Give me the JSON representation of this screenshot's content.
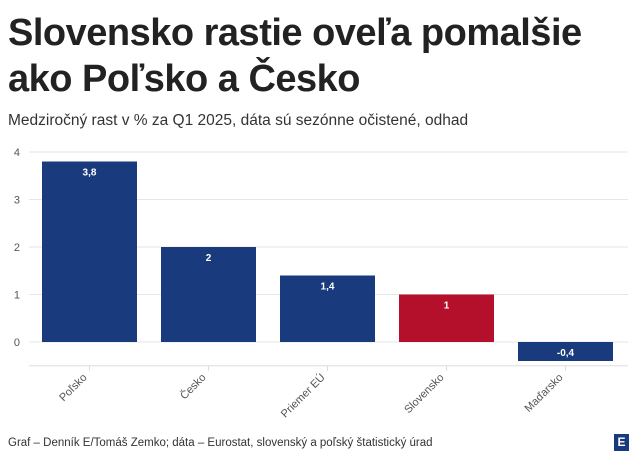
{
  "title": "Slovensko rastie oveľa pomalšie ako Poľsko a Česko",
  "subtitle": "Medziročný rast v % za Q1 2025, dáta sú sezónne očistené, odhad",
  "footer": "Graf – Denník E/Tomáš Zemko; dáta – Eurostat, slovenský a poľský štatistický úrad",
  "logo": "E",
  "colors": {
    "default": "#1a3a7e",
    "highlight": "#b5102b"
  },
  "chart_data": {
    "type": "bar",
    "title": "Slovensko rastie oveľa pomalšie ako Poľsko a Česko",
    "subtitle": "Medziročný rast v % za Q1 2025, dáta sú sezónne očistené, odhad",
    "categories": [
      "Poľsko",
      "Česko",
      "Priemer EÚ",
      "Slovensko",
      "Maďarsko"
    ],
    "values": [
      3.8,
      2,
      1.4,
      1,
      -0.4
    ],
    "labels": [
      "3,8",
      "2",
      "1,4",
      "1",
      "-0,4"
    ],
    "highlight": [
      false,
      false,
      false,
      true,
      false
    ],
    "yticks": [
      0,
      1,
      2,
      3,
      4
    ],
    "ylim": [
      -0.5,
      4
    ],
    "xlabel": "",
    "ylabel": "",
    "grid": true
  }
}
